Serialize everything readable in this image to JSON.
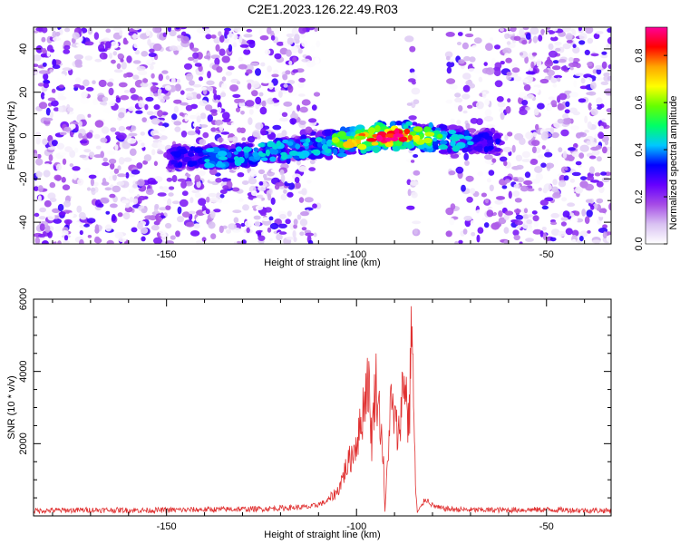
{
  "title": "C2E1.2023.126.22.49.R03",
  "colorbar": {
    "label": "Normalized spectral amplitude",
    "ticks": [
      "0.0",
      "0.2",
      "0.4",
      "0.6",
      "0.8"
    ],
    "range": [
      0,
      0.92
    ],
    "colormap": [
      "#ffffff",
      "#d9c2f2",
      "#a64ce6",
      "#6600ff",
      "#0000ff",
      "#00c8ff",
      "#00ff66",
      "#66ff00",
      "#ffff00",
      "#ffa500",
      "#ff0000",
      "#ff0099"
    ]
  },
  "chart_data": [
    {
      "type": "heatmap",
      "xlabel": "Height of straight line (km)",
      "ylabel": "Frequency (Hz)",
      "xlim": [
        -185,
        -33
      ],
      "ylim": [
        -50,
        50
      ],
      "xticks": [
        -150,
        -100,
        -50
      ],
      "yticks": [
        -40,
        -20,
        0,
        20,
        40
      ],
      "grid": false,
      "signal_band": {
        "x_start": -150,
        "x_end": -62,
        "center_frequency": [
          [
            -150,
            -10
          ],
          [
            -135,
            -10
          ],
          [
            -120,
            -7
          ],
          [
            -110,
            -5
          ],
          [
            -100,
            -2
          ],
          [
            -92,
            0
          ],
          [
            -85,
            0
          ],
          [
            -75,
            -2
          ],
          [
            -62,
            -3
          ]
        ],
        "peak_amplitude": 0.92,
        "peak_x": -93,
        "peak_frequency": -1
      },
      "gaps": [
        [
          -110,
          -86
        ],
        [
          -84,
          -76
        ]
      ]
    },
    {
      "type": "line",
      "xlabel": "Height of straight line (km)",
      "ylabel": "SNR (10 * v/v)",
      "xlim": [
        -185,
        -33
      ],
      "ylim": [
        0,
        6200
      ],
      "xticks": [
        -150,
        -100,
        -50
      ],
      "yticks": [
        2000,
        4000,
        6000
      ],
      "color": "#e03030",
      "baseline": 150,
      "series": [
        {
          "x": [
            -185,
            -170,
            -155,
            -140,
            -125,
            -112,
            -108,
            -105,
            -103,
            -101,
            -99,
            -98,
            -97,
            -96.5,
            -96,
            -95,
            -94,
            -93,
            -92.5,
            -92,
            -91,
            -90,
            -89,
            -88,
            -87,
            -86.5,
            -86,
            -85.5,
            -85,
            -84.5,
            -84,
            -83,
            -82,
            -81,
            -80,
            -78,
            -75,
            -70,
            -60,
            -50,
            -40,
            -33
          ],
          "y": [
            150,
            170,
            160,
            180,
            200,
            260,
            400,
            700,
            1300,
            1800,
            2500,
            3300,
            4000,
            3200,
            2100,
            3900,
            3000,
            1800,
            100,
            1200,
            3200,
            2800,
            2200,
            3500,
            3900,
            2600,
            3100,
            6100,
            3300,
            900,
            100,
            250,
            480,
            420,
            300,
            220,
            190,
            170,
            170,
            180,
            160,
            150
          ]
        }
      ]
    }
  ]
}
